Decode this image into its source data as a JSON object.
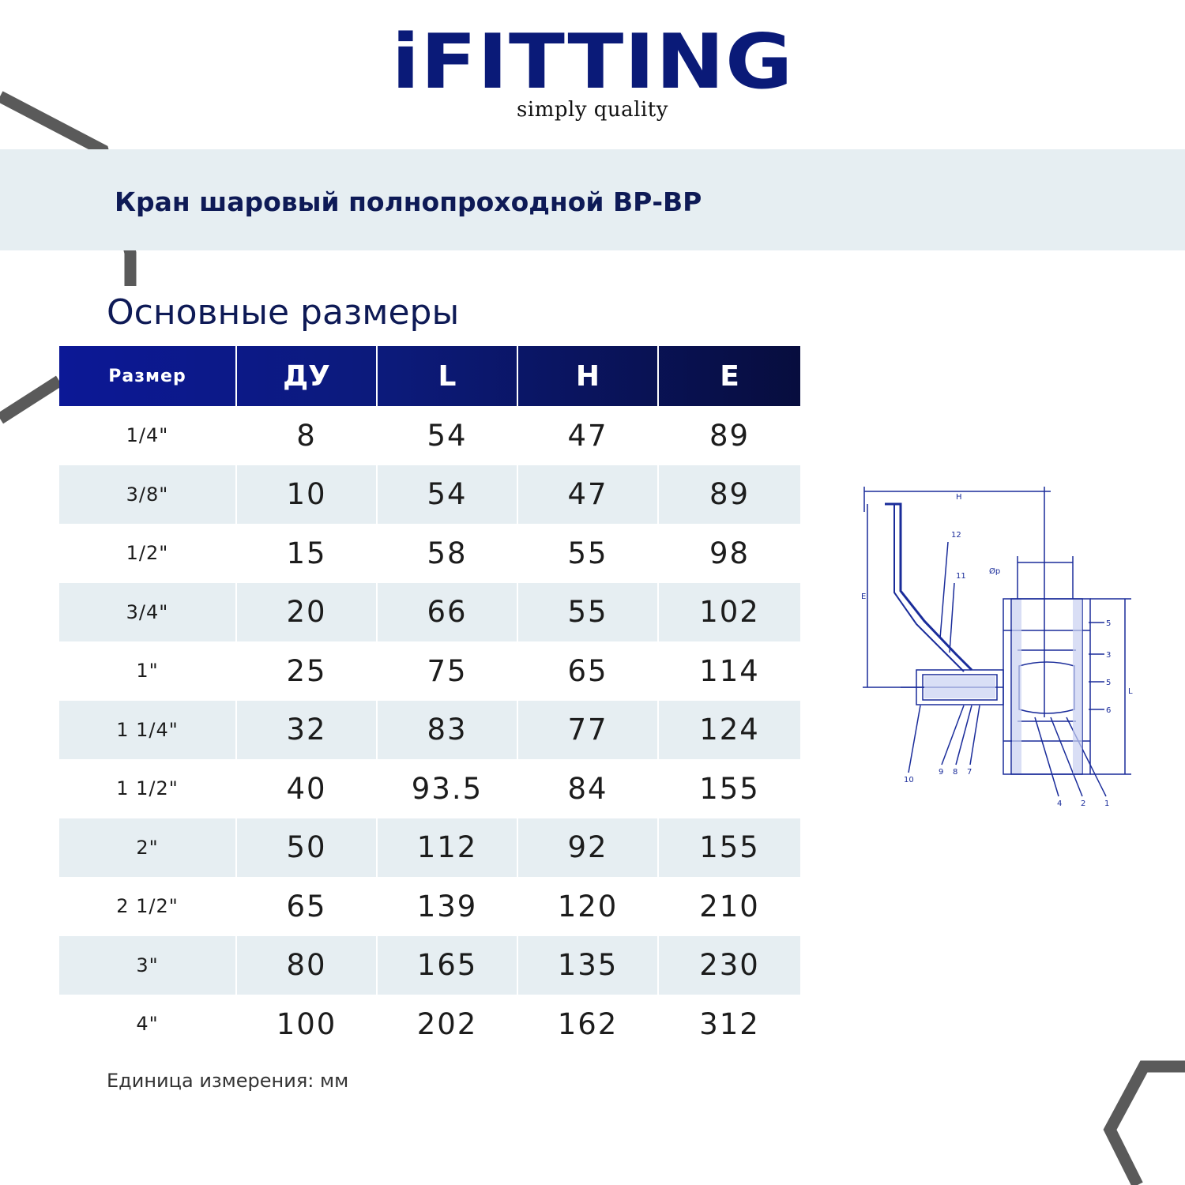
{
  "brand": {
    "logo": "iFITTING",
    "tagline": "simply quality"
  },
  "header": {
    "product_title": "Кран шаровый полнопроходной ВР-ВР"
  },
  "section": {
    "title": "Основные размеры"
  },
  "table": {
    "columns": [
      "Размер",
      "ДУ",
      "L",
      "H",
      "E"
    ],
    "rows": [
      {
        "size": "1/4\"",
        "du": "8",
        "l": "54",
        "h": "47",
        "e": "89"
      },
      {
        "size": "3/8\"",
        "du": "10",
        "l": "54",
        "h": "47",
        "e": "89"
      },
      {
        "size": "1/2\"",
        "du": "15",
        "l": "58",
        "h": "55",
        "e": "98"
      },
      {
        "size": "3/4\"",
        "du": "20",
        "l": "66",
        "h": "55",
        "e": "102"
      },
      {
        "size": "1\"",
        "du": "25",
        "l": "75",
        "h": "65",
        "e": "114"
      },
      {
        "size": "1 1/4\"",
        "du": "32",
        "l": "83",
        "h": "77",
        "e": "124"
      },
      {
        "size": "1 1/2\"",
        "du": "40",
        "l": "93.5",
        "h": "84",
        "e": "155"
      },
      {
        "size": "2\"",
        "du": "50",
        "l": "112",
        "h": "92",
        "e": "155"
      },
      {
        "size": "2 1/2\"",
        "du": "65",
        "l": "139",
        "h": "120",
        "e": "210"
      },
      {
        "size": "3\"",
        "du": "80",
        "l": "165",
        "h": "135",
        "e": "230"
      },
      {
        "size": "4\"",
        "du": "100",
        "l": "202",
        "h": "162",
        "e": "312"
      }
    ]
  },
  "footer": {
    "units_note": "Единица измерения: мм"
  },
  "drawing": {
    "dim_labels": {
      "h": "H",
      "e": "E",
      "l": "L",
      "dp": "Øp"
    },
    "callouts": {
      "c12": "12",
      "c11": "11",
      "c10": "10",
      "c9": "9",
      "c8": "8",
      "c7": "7",
      "c5a": "5",
      "c3": "3",
      "c5b": "5",
      "c6": "6",
      "c4": "4",
      "c2": "2",
      "c1": "1"
    }
  },
  "colors": {
    "brand_navy": "#0a1a78",
    "header_dark": "#070d3e",
    "row_stripe": "#e6eef2",
    "drawing_blue": "#1a2c9a"
  }
}
